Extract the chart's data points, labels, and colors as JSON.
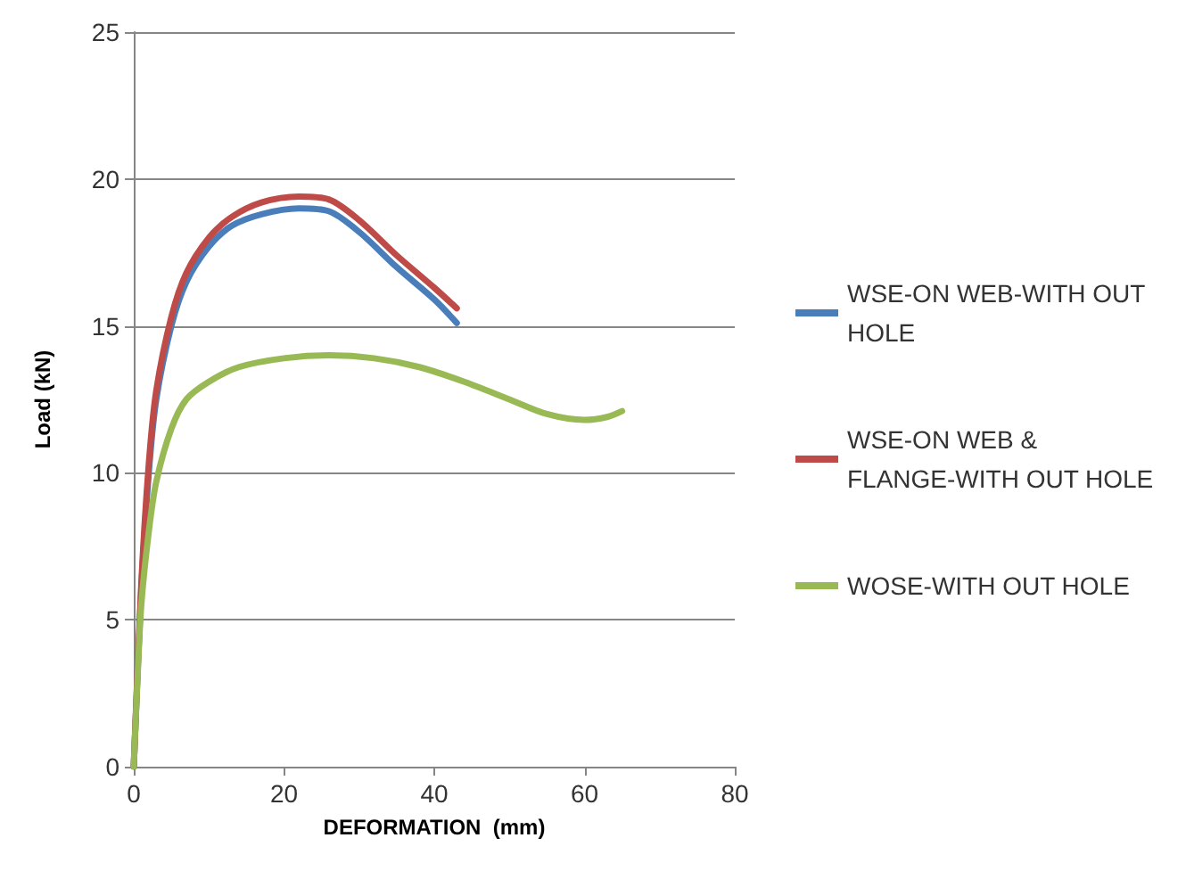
{
  "chart_data": {
    "type": "line",
    "xlabel": "DEFORMATION  (mm)",
    "ylabel": "Load (kN)",
    "xlim": [
      0,
      80
    ],
    "xticks": [
      0,
      20,
      40,
      60,
      80
    ],
    "ylim": [
      0,
      25
    ],
    "yticks": [
      0,
      5,
      10,
      15,
      20,
      25
    ],
    "grid": "y",
    "legend": "right",
    "marker": "none",
    "line_style": "solid",
    "series": [
      {
        "name": "WSE-ON WEB-WITH OUT HOLE",
        "color": "#4a7ebb",
        "x": [
          0,
          1,
          2,
          3,
          5,
          7,
          10,
          13,
          17,
          22,
          26,
          30,
          35,
          40,
          43
        ],
        "values": [
          0,
          6,
          10,
          12.5,
          15,
          16.5,
          17.7,
          18.4,
          18.8,
          19,
          18.9,
          18.2,
          17,
          15.9,
          15.1
        ]
      },
      {
        "name": "WSE-ON WEB & FLANGE-WITH OUT HOLE",
        "color": "#be4b48",
        "x": [
          0,
          1,
          2,
          3,
          5,
          7,
          10,
          13,
          17,
          22,
          26,
          30,
          35,
          40,
          43
        ],
        "values": [
          0,
          6.2,
          10.3,
          12.8,
          15.3,
          16.8,
          18,
          18.7,
          19.2,
          19.4,
          19.3,
          18.6,
          17.4,
          16.3,
          15.6
        ]
      },
      {
        "name": "WOSE-WITH OUT HOLE",
        "color": "#98b954",
        "x": [
          0,
          0.5,
          1,
          2,
          3,
          5,
          7,
          10,
          14,
          20,
          26,
          32,
          38,
          44,
          50,
          55,
          60,
          63,
          65
        ],
        "values": [
          0,
          3,
          5.5,
          8,
          9.7,
          11.5,
          12.5,
          13.1,
          13.6,
          13.9,
          14,
          13.9,
          13.6,
          13.1,
          12.5,
          12,
          11.8,
          11.9,
          12.1
        ]
      }
    ]
  }
}
